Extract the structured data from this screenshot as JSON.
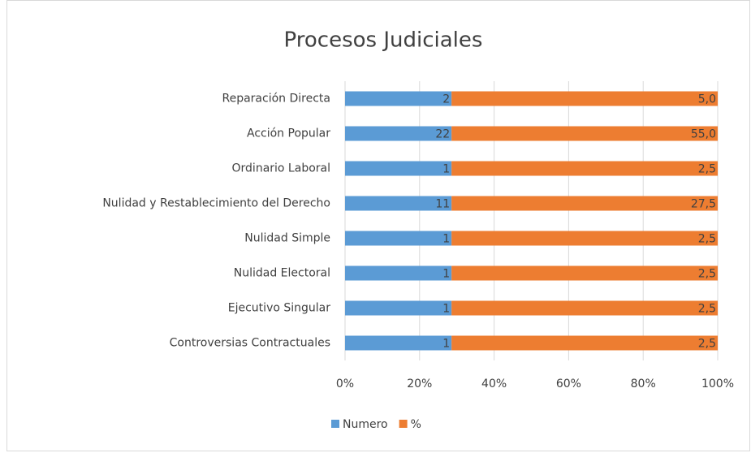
{
  "chart_data": {
    "type": "stacked_bar_100",
    "orientation": "horizontal",
    "title": "Procesos Judiciales",
    "categories": [
      "Reparación Directa",
      "Acción Popular",
      "Ordinario Laboral",
      "Nulidad y Restablecimiento del Derecho",
      "Nulidad Simple",
      "Nulidad Electoral",
      "Ejecutivo Singular",
      "Controversias Contractuales"
    ],
    "series": [
      {
        "name": "Numero",
        "color": "#5b9bd5",
        "values": [
          2,
          22,
          1,
          11,
          1,
          1,
          1,
          1
        ]
      },
      {
        "name": "%",
        "color": "#ed7d31",
        "values": [
          5.0,
          55.0,
          2.5,
          27.5,
          2.5,
          2.5,
          2.5,
          2.5
        ],
        "value_labels": [
          "5,0",
          "55,0",
          "2,5",
          "27,5",
          "2,5",
          "2,5",
          "2,5",
          "2,5"
        ]
      }
    ],
    "xlim": [
      0,
      100
    ],
    "xticks": [
      {
        "value": 0,
        "label": "0%"
      },
      {
        "value": 20,
        "label": "20%"
      },
      {
        "value": 40,
        "label": "40%"
      },
      {
        "value": 60,
        "label": "60%"
      },
      {
        "value": 80,
        "label": "80%"
      },
      {
        "value": 100,
        "label": "100%"
      }
    ],
    "grid": true,
    "legend": "bottom"
  }
}
